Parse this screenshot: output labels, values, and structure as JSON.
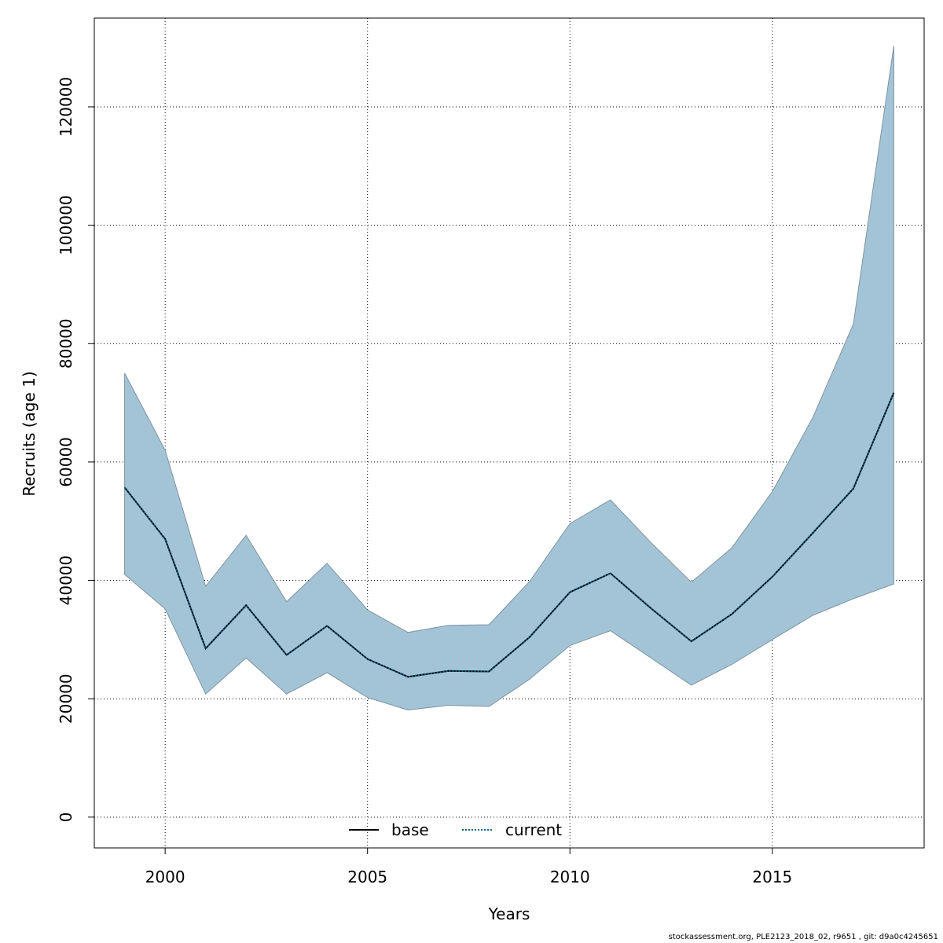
{
  "chart_data": {
    "type": "area",
    "xlabel": "Years",
    "ylabel": "Recruits (age 1)",
    "xlim": [
      1998.25,
      2018.75
    ],
    "ylim": [
      -5200,
      135000
    ],
    "x_ticks": [
      2000,
      2005,
      2010,
      2015
    ],
    "y_ticks": [
      0,
      20000,
      40000,
      60000,
      80000,
      100000,
      120000
    ],
    "grid": true,
    "legend_position": "bottom-center",
    "x": [
      1999,
      2000,
      2001,
      2002,
      2003,
      2004,
      2005,
      2006,
      2007,
      2008,
      2009,
      2010,
      2011,
      2012,
      2013,
      2014,
      2015,
      2016,
      2017,
      2018
    ],
    "band": {
      "upper": [
        75000,
        62000,
        39000,
        47600,
        36400,
        42900,
        35000,
        31200,
        32400,
        32500,
        39800,
        49600,
        53600,
        46400,
        39700,
        45500,
        55000,
        67500,
        83300,
        130300
      ],
      "lower": [
        41000,
        35200,
        20800,
        26900,
        20800,
        24400,
        20200,
        18100,
        18900,
        18700,
        23300,
        29000,
        31500,
        26900,
        22300,
        25800,
        30000,
        34100,
        36900,
        39400
      ],
      "color": "#a3c4d6"
    },
    "series": [
      {
        "name": "base",
        "values": [
          55700,
          47000,
          28500,
          35800,
          27400,
          32300,
          26700,
          23700,
          24700,
          24600,
          30400,
          38000,
          41200,
          35300,
          29700,
          34300,
          40600,
          48000,
          55500,
          71700
        ],
        "color": "#000000",
        "style": "solid"
      },
      {
        "name": "current",
        "values": [
          55700,
          47000,
          28500,
          35800,
          27400,
          32300,
          26700,
          23700,
          24700,
          24600,
          30400,
          38000,
          41200,
          35300,
          29700,
          34300,
          40600,
          48000,
          55500,
          71700
        ],
        "color": "#0b5f8a",
        "style": "dotted"
      }
    ]
  },
  "footer": "stockassessment.org, PLE2123_2018_02, r9651 , git: d9a0c4245651"
}
